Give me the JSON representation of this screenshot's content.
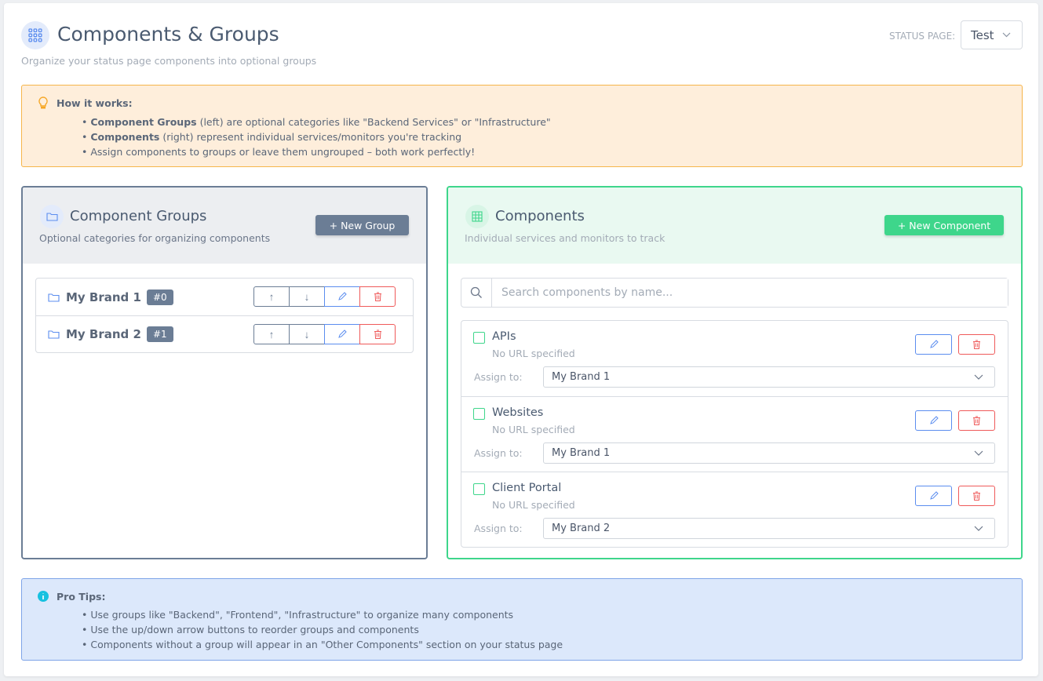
{
  "header": {
    "title": "Components & Groups",
    "subtitle": "Organize your status page components into optional groups",
    "status_page_label": "STATUS PAGE:",
    "status_page_value": "Test",
    "icon": "grid-icon"
  },
  "how_it_works": {
    "title": "How it works:",
    "items": [
      {
        "bold": "Component Groups",
        "text": " (left) are optional categories like \"Backend Services\" or \"Infrastructure\""
      },
      {
        "bold": "Components",
        "text": " (right) represent individual services/monitors you're tracking"
      },
      {
        "bold": "",
        "text": "Assign components to groups or leave them ungrouped – both work perfectly!"
      }
    ]
  },
  "groups_panel": {
    "title": "Component Groups",
    "subtitle": "Optional categories for organizing components",
    "new_button": "+ New Group",
    "groups": [
      {
        "name": "My Brand 1",
        "badge": "#0"
      },
      {
        "name": "My Brand 2",
        "badge": "#1"
      }
    ]
  },
  "components_panel": {
    "title": "Components",
    "subtitle": "Individual services and monitors to track",
    "new_button": "+ New Component",
    "search_placeholder": "Search components by name...",
    "assign_label": "Assign to:",
    "components": [
      {
        "name": "APIs",
        "url": "No URL specified",
        "group": "My Brand 1"
      },
      {
        "name": "Websites",
        "url": "No URL specified",
        "group": "My Brand 1"
      },
      {
        "name": "Client Portal",
        "url": "No URL specified",
        "group": "My Brand 2"
      }
    ]
  },
  "pro_tips": {
    "title": "Pro Tips:",
    "items": [
      "Use groups like \"Backend\", \"Frontend\", \"Infrastructure\" to organize many components",
      "Use the up/down arrow buttons to reorder groups and components",
      "Components without a group will appear in an \"Other Components\" section on your status page"
    ]
  },
  "colors": {
    "groups_accent": "#6b7d95",
    "components_accent": "#3ed68b",
    "edit": "#5b8def",
    "delete": "#ef5a5a",
    "warning_bg": "#feeedb",
    "info_bg": "#dce8fb"
  }
}
